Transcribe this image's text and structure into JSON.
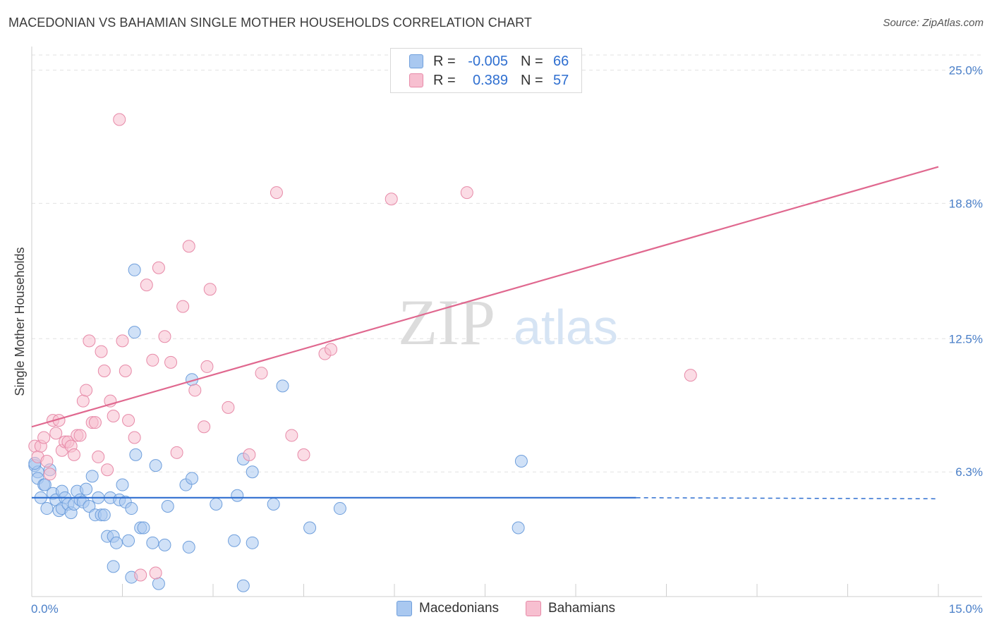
{
  "header": {
    "title": "MACEDONIAN VS BAHAMIAN SINGLE MOTHER HOUSEHOLDS CORRELATION CHART",
    "source": "Source: ZipAtlas.com"
  },
  "watermark": {
    "zip": "ZIP",
    "atlas": "atlas"
  },
  "legend": {
    "rows": [
      {
        "r_label": "R =",
        "r_value": "-0.005",
        "n_label": "N =",
        "n_value": "66",
        "color": "#a9c8f0",
        "stroke": "#6f9fdc"
      },
      {
        "r_label": "R =",
        "r_value": "0.389",
        "n_label": "N =",
        "n_value": "57",
        "color": "#f7bfd0",
        "stroke": "#e78aa8"
      }
    ]
  },
  "bottom_legend": {
    "items": [
      {
        "label": "Macedonians",
        "color": "#a9c8f0",
        "stroke": "#6f9fdc"
      },
      {
        "label": "Bahamians",
        "color": "#f7bfd0",
        "stroke": "#e78aa8"
      }
    ]
  },
  "chart_data": {
    "type": "scatter",
    "title": "MACEDONIAN VS BAHAMIAN SINGLE MOTHER HOUSEHOLDS CORRELATION CHART",
    "xlabel": "",
    "ylabel": "Single Mother Households",
    "xlim": [
      0,
      15
    ],
    "ylim": [
      0.5,
      25.8
    ],
    "x_tick_labels": [
      "0.0%",
      "15.0%"
    ],
    "y_ticks": [
      6.3,
      12.5,
      18.8,
      25.0
    ],
    "y_tick_labels": [
      "6.3%",
      "12.5%",
      "18.8%",
      "25.0%"
    ],
    "grid": true,
    "series": [
      {
        "name": "Macedonians",
        "color": "#a9c8f0",
        "stroke": "#6f9fdc",
        "trend": {
          "x0": 0.0,
          "y0": 5.1,
          "x1": 10.0,
          "y1": 5.1,
          "x_dash_end": 15.0,
          "y_dash_end": 5.05,
          "color": "#2f6fd0"
        },
        "points": [
          [
            0.05,
            6.6
          ],
          [
            0.1,
            6.3
          ],
          [
            0.1,
            6.0
          ],
          [
            0.15,
            5.1
          ],
          [
            0.2,
            5.7
          ],
          [
            0.22,
            5.7
          ],
          [
            0.25,
            4.6
          ],
          [
            0.3,
            6.4
          ],
          [
            0.35,
            5.3
          ],
          [
            0.4,
            5.0
          ],
          [
            0.45,
            4.5
          ],
          [
            0.5,
            4.6
          ],
          [
            0.5,
            5.4
          ],
          [
            0.55,
            5.1
          ],
          [
            0.6,
            4.8
          ],
          [
            0.65,
            4.4
          ],
          [
            0.7,
            4.8
          ],
          [
            0.75,
            5.4
          ],
          [
            0.8,
            5.0
          ],
          [
            0.85,
            4.9
          ],
          [
            0.9,
            5.5
          ],
          [
            0.95,
            4.7
          ],
          [
            1.0,
            6.1
          ],
          [
            1.05,
            4.3
          ],
          [
            1.1,
            5.1
          ],
          [
            1.15,
            4.3
          ],
          [
            1.2,
            4.3
          ],
          [
            1.25,
            3.3
          ],
          [
            1.3,
            5.1
          ],
          [
            1.35,
            3.3
          ],
          [
            1.35,
            1.9
          ],
          [
            1.4,
            3.0
          ],
          [
            1.45,
            5.0
          ],
          [
            1.5,
            5.7
          ],
          [
            1.55,
            4.9
          ],
          [
            1.6,
            3.1
          ],
          [
            1.65,
            4.6
          ],
          [
            1.65,
            1.4
          ],
          [
            1.7,
            15.7
          ],
          [
            1.7,
            12.8
          ],
          [
            1.72,
            7.1
          ],
          [
            1.8,
            3.7
          ],
          [
            1.85,
            3.7
          ],
          [
            2.0,
            3.0
          ],
          [
            2.05,
            6.6
          ],
          [
            2.1,
            1.1
          ],
          [
            2.2,
            2.9
          ],
          [
            2.25,
            4.7
          ],
          [
            2.55,
            5.7
          ],
          [
            2.6,
            2.8
          ],
          [
            2.65,
            6.0
          ],
          [
            2.65,
            10.6
          ],
          [
            3.05,
            4.8
          ],
          [
            3.35,
            3.1
          ],
          [
            3.4,
            5.2
          ],
          [
            3.5,
            6.9
          ],
          [
            3.65,
            6.3
          ],
          [
            3.65,
            3.0
          ],
          [
            3.5,
            1.0
          ],
          [
            4.0,
            4.8
          ],
          [
            4.15,
            10.3
          ],
          [
            4.6,
            3.7
          ],
          [
            5.1,
            4.6
          ],
          [
            8.05,
            3.7
          ],
          [
            8.1,
            6.8
          ],
          [
            0.05,
            6.7
          ]
        ]
      },
      {
        "name": "Bahamians",
        "color": "#f7bfd0",
        "stroke": "#e78aa8",
        "trend": {
          "x0": 0.0,
          "y0": 8.4,
          "x1": 15.0,
          "y1": 20.5,
          "color": "#e0688f"
        },
        "points": [
          [
            0.05,
            7.5
          ],
          [
            0.1,
            7.0
          ],
          [
            0.15,
            7.5
          ],
          [
            0.2,
            7.9
          ],
          [
            0.25,
            6.8
          ],
          [
            0.3,
            6.2
          ],
          [
            0.35,
            8.7
          ],
          [
            0.4,
            8.1
          ],
          [
            0.45,
            8.7
          ],
          [
            0.5,
            7.3
          ],
          [
            0.55,
            7.7
          ],
          [
            0.6,
            7.7
          ],
          [
            0.65,
            7.5
          ],
          [
            0.7,
            7.1
          ],
          [
            0.75,
            8.0
          ],
          [
            0.8,
            8.0
          ],
          [
            0.85,
            9.6
          ],
          [
            0.9,
            10.1
          ],
          [
            0.95,
            12.4
          ],
          [
            1.0,
            8.6
          ],
          [
            1.05,
            8.6
          ],
          [
            1.1,
            7.0
          ],
          [
            1.15,
            11.9
          ],
          [
            1.2,
            11.0
          ],
          [
            1.25,
            6.4
          ],
          [
            1.3,
            9.6
          ],
          [
            1.35,
            8.9
          ],
          [
            1.45,
            22.7
          ],
          [
            1.5,
            12.4
          ],
          [
            1.55,
            11.0
          ],
          [
            1.6,
            8.7
          ],
          [
            1.7,
            7.9
          ],
          [
            1.8,
            1.5
          ],
          [
            1.9,
            15.0
          ],
          [
            2.0,
            11.5
          ],
          [
            2.05,
            1.6
          ],
          [
            2.1,
            15.8
          ],
          [
            2.2,
            12.6
          ],
          [
            2.3,
            11.4
          ],
          [
            2.4,
            7.2
          ],
          [
            2.5,
            14.0
          ],
          [
            2.6,
            16.8
          ],
          [
            2.7,
            10.1
          ],
          [
            2.85,
            8.4
          ],
          [
            2.9,
            11.2
          ],
          [
            2.95,
            14.8
          ],
          [
            3.25,
            9.3
          ],
          [
            3.6,
            7.1
          ],
          [
            3.8,
            10.9
          ],
          [
            4.05,
            19.3
          ],
          [
            4.3,
            8.0
          ],
          [
            4.5,
            7.1
          ],
          [
            4.85,
            11.8
          ],
          [
            4.95,
            12.0
          ],
          [
            5.95,
            19.0
          ],
          [
            7.2,
            19.3
          ],
          [
            10.9,
            10.8
          ]
        ]
      }
    ]
  }
}
